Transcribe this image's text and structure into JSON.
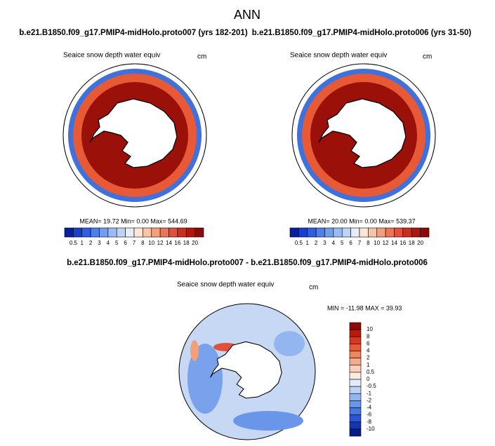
{
  "header": {
    "title": "ANN"
  },
  "panels": [
    {
      "title": "b.e21.B1850.f09_g17.PMIP4-midHolo.proto007 (yrs 182-201)",
      "field": "Seaice snow depth water equiv",
      "units": "cm",
      "stats": "MEAN=  19.72  Min=   0.00  Max= 544.69"
    },
    {
      "title": "b.e21.B1850.f09_g17.PMIP4-midHolo.proto006 (yrs 31-50)",
      "field": "Seaice snow depth water equiv",
      "units": "cm",
      "stats": "MEAN=  20.00  Min=   0.00  Max= 539.37"
    },
    {
      "title": "b.e21.B1850.f09_g17.PMIP4-midHolo.proto007 - b.e21.B1850.f09_g17.PMIP4-midHolo.proto006",
      "field": "Seaice snow depth water equiv",
      "units": "cm",
      "stats": "MIN = -11.98 MAX =  39.93"
    }
  ],
  "colorbar": {
    "labels": [
      "0.5",
      "1",
      "2",
      "3",
      "4",
      "5",
      "6",
      "7",
      "8",
      "10",
      "12",
      "14",
      "16",
      "18",
      "20"
    ],
    "colors": [
      "#08209c",
      "#1a3fc8",
      "#2f5fe0",
      "#4d80ea",
      "#719ff0",
      "#98bbf3",
      "#bed4f6",
      "#e4edf8",
      "#fbe6d8",
      "#f8c3a6",
      "#f29f7c",
      "#eb7656",
      "#e0503a",
      "#cc2d1e",
      "#b01510",
      "#8c0a08"
    ]
  },
  "diff_colorbar": {
    "labels": [
      "10",
      "8",
      "6",
      "4",
      "2",
      "1",
      "0.5",
      "0",
      "-0.5",
      "-1",
      "-2",
      "-4",
      "-6",
      "-8",
      "-10"
    ],
    "colors": [
      "#8c0a08",
      "#b81a10",
      "#d8361e",
      "#e85a36",
      "#f08660",
      "#f4ab8c",
      "#f8cfb8",
      "#fbeadf",
      "#e2ecf8",
      "#bcd2f4",
      "#93b5f0",
      "#6a96ea",
      "#4676e2",
      "#2a55d4",
      "#1634b0",
      "#061c88"
    ]
  }
}
